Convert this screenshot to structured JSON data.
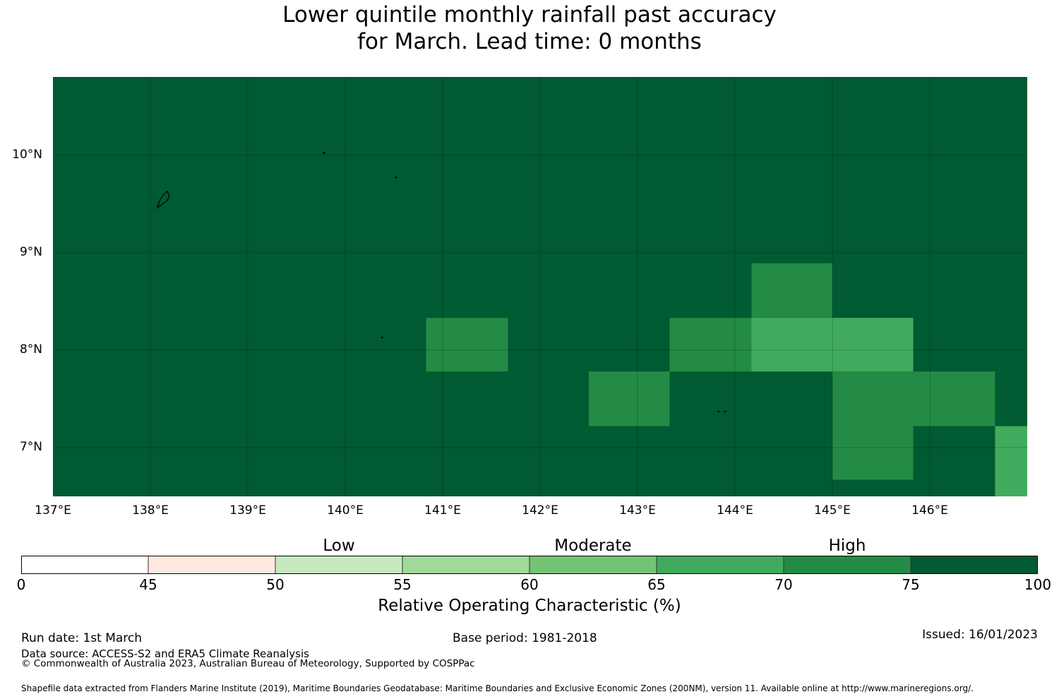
{
  "title": {
    "line1": "Lower quintile monthly rainfall past accuracy",
    "line2": "for March. Lead time: 0 months"
  },
  "map": {
    "lon_range": [
      137,
      147
    ],
    "lat_range": [
      6.5,
      10.8
    ],
    "x_ticks": [
      "137°E",
      "138°E",
      "139°E",
      "140°E",
      "141°E",
      "142°E",
      "143°E",
      "144°E",
      "145°E",
      "146°E"
    ],
    "x_tick_values": [
      137,
      138,
      139,
      140,
      141,
      142,
      143,
      144,
      145,
      146
    ],
    "y_ticks": [
      "10°N",
      "9°N",
      "8°N",
      "7°N"
    ],
    "y_tick_values": [
      10,
      9,
      8,
      7
    ],
    "background_color": "#005a32",
    "grid": true,
    "cells": [
      {
        "lon": [
          140.83,
          141.67
        ],
        "lat": [
          7.78,
          8.33
        ],
        "color": "#238b45",
        "class": "70-75"
      },
      {
        "lon": [
          142.5,
          143.33
        ],
        "lat": [
          7.22,
          7.78
        ],
        "color": "#238b45",
        "class": "70-75"
      },
      {
        "lon": [
          143.33,
          144.17
        ],
        "lat": [
          7.78,
          8.33
        ],
        "color": "#238b45",
        "class": "70-75"
      },
      {
        "lon": [
          144.17,
          145.0
        ],
        "lat": [
          8.33,
          8.89
        ],
        "color": "#238b45",
        "class": "70-75"
      },
      {
        "lon": [
          144.17,
          145.0
        ],
        "lat": [
          7.78,
          8.33
        ],
        "color": "#41ab5d",
        "class": "65-70"
      },
      {
        "lon": [
          145.0,
          145.83
        ],
        "lat": [
          7.78,
          8.33
        ],
        "color": "#41ab5d",
        "class": "65-70"
      },
      {
        "lon": [
          145.0,
          145.83
        ],
        "lat": [
          7.22,
          7.78
        ],
        "color": "#238b45",
        "class": "70-75"
      },
      {
        "lon": [
          145.0,
          145.83
        ],
        "lat": [
          6.67,
          7.22
        ],
        "color": "#238b45",
        "class": "70-75"
      },
      {
        "lon": [
          145.83,
          146.67
        ],
        "lat": [
          7.22,
          7.78
        ],
        "color": "#238b45",
        "class": "70-75"
      },
      {
        "lon": [
          146.67,
          147.0
        ],
        "lat": [
          6.5,
          7.22
        ],
        "color": "#41ab5d",
        "class": "65-70"
      }
    ],
    "islands": [
      {
        "name": "island-yap",
        "lon": 138.13,
        "lat": 9.55
      },
      {
        "name": "island-ngulu",
        "lon": 139.78,
        "lat": 10.02
      },
      {
        "name": "island-ulithi",
        "lon": 140.52,
        "lat": 9.77
      },
      {
        "name": "island-sorol",
        "lon": 140.38,
        "lat": 8.13
      },
      {
        "name": "island-east-1",
        "lon": 143.83,
        "lat": 7.37
      },
      {
        "name": "island-east-2",
        "lon": 143.9,
        "lat": 7.37
      }
    ]
  },
  "colorbar": {
    "label": "Relative Operating Characteristic (%)",
    "ticks": [
      "0",
      "45",
      "50",
      "55",
      "60",
      "65",
      "70",
      "75",
      "100"
    ],
    "colors": [
      "#ffffff",
      "#fee8e0",
      "#c7e9c0",
      "#a1d99b",
      "#74c476",
      "#41ab5d",
      "#238b45",
      "#005a32"
    ],
    "categories": [
      {
        "label": "Low",
        "position_tick": 2.5
      },
      {
        "label": "Moderate",
        "position_tick": 4.5
      },
      {
        "label": "High",
        "position_tick": 6.5
      }
    ]
  },
  "footer": {
    "run_date": "Run date: 1st March",
    "base_period": "Base period: 1981-2018",
    "issued": "Issued: 16/01/2023",
    "data_source": "Data source: ACCESS-S2 and ERA5 Climate Reanalysis",
    "copyright": "© Commonwealth of Australia 2023, Australian Bureau of Meteorology, Supported by COSPPac",
    "shapefile": "Shapefile data extracted from Flanders Marine Institute (2019), Maritime Boundaries Geodatabase: Maritime Boundaries and Exclusive Economic Zones (200NM), version 11. Available online at http://www.marineregions.org/."
  }
}
